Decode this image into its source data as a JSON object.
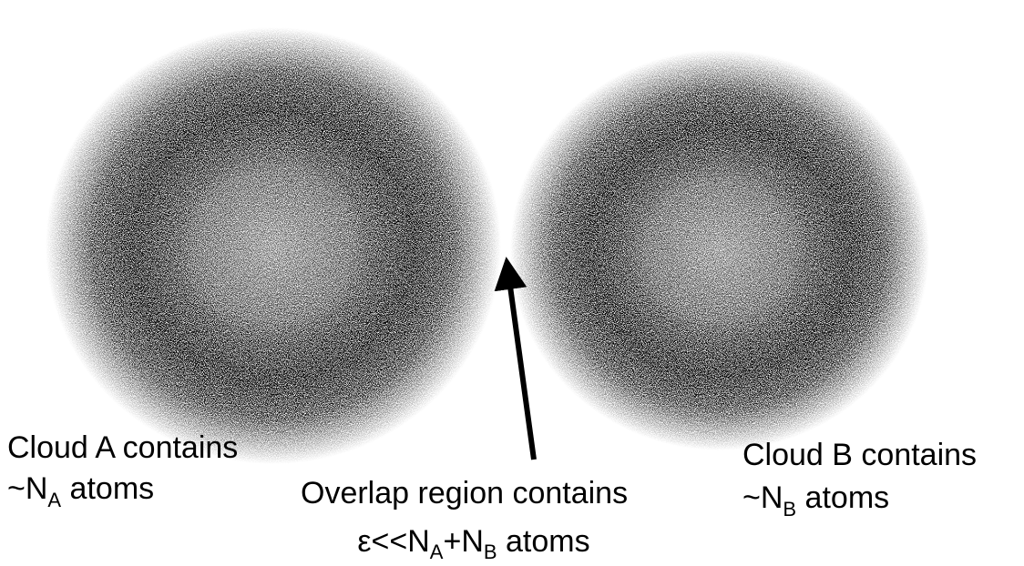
{
  "labels": {
    "cloud_a": {
      "line1": "Cloud A contains",
      "line2": [
        "~N",
        "A",
        " atoms"
      ]
    },
    "cloud_b": {
      "line1": "Cloud B contains",
      "line2": [
        "~N",
        "B",
        " atoms"
      ]
    },
    "overlap": {
      "line1": "Overlap region contains",
      "line2": [
        "ε<<N",
        "A",
        "+N",
        "B",
        " atoms"
      ]
    }
  }
}
